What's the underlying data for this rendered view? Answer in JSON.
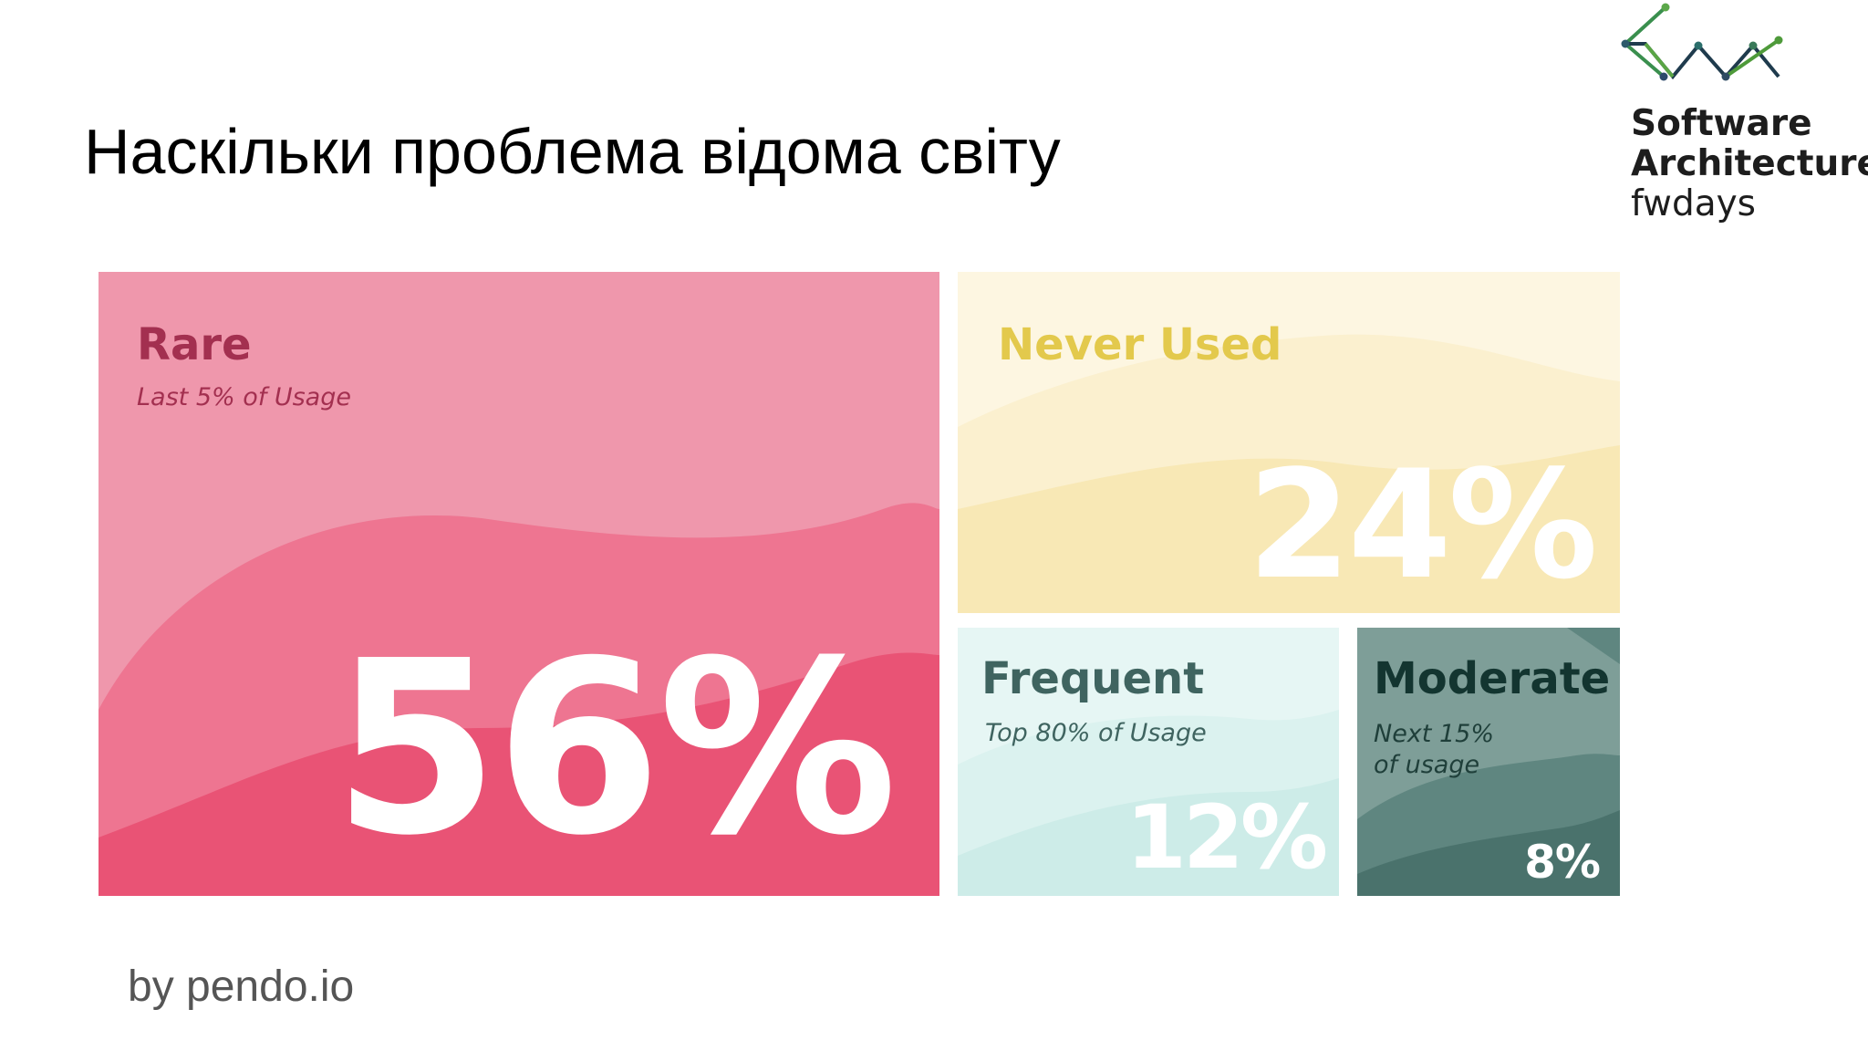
{
  "slide": {
    "title": "Наскільки проблема відома світу",
    "source": "by pendo.io"
  },
  "logo": {
    "line1": "Software",
    "line2": "Architecture",
    "line3": "fwdays",
    "icon": "zigzag-graph-logo-icon",
    "color": "#2e7d4f"
  },
  "chart_data": {
    "type": "treemap",
    "title": "",
    "unit": "%",
    "categories": [
      "Rare",
      "Never Used",
      "Frequent",
      "Moderate"
    ],
    "values": [
      56,
      24,
      12,
      8
    ],
    "items": [
      {
        "label": "Rare",
        "sublabel": "Last 5% of Usage",
        "value": 56,
        "display": "56%",
        "color": "#e94f77"
      },
      {
        "label": "Never Used",
        "sublabel": "",
        "value": 24,
        "display": "24%",
        "color": "#fbeebd"
      },
      {
        "label": "Frequent",
        "sublabel": "Top 80% of Usage",
        "value": 12,
        "display": "12%",
        "color": "#d6f1ee"
      },
      {
        "label": "Moderate",
        "sublabel": "Next 15% of usage",
        "value": 8,
        "display": "8%",
        "color": "#4f7e78"
      }
    ]
  }
}
